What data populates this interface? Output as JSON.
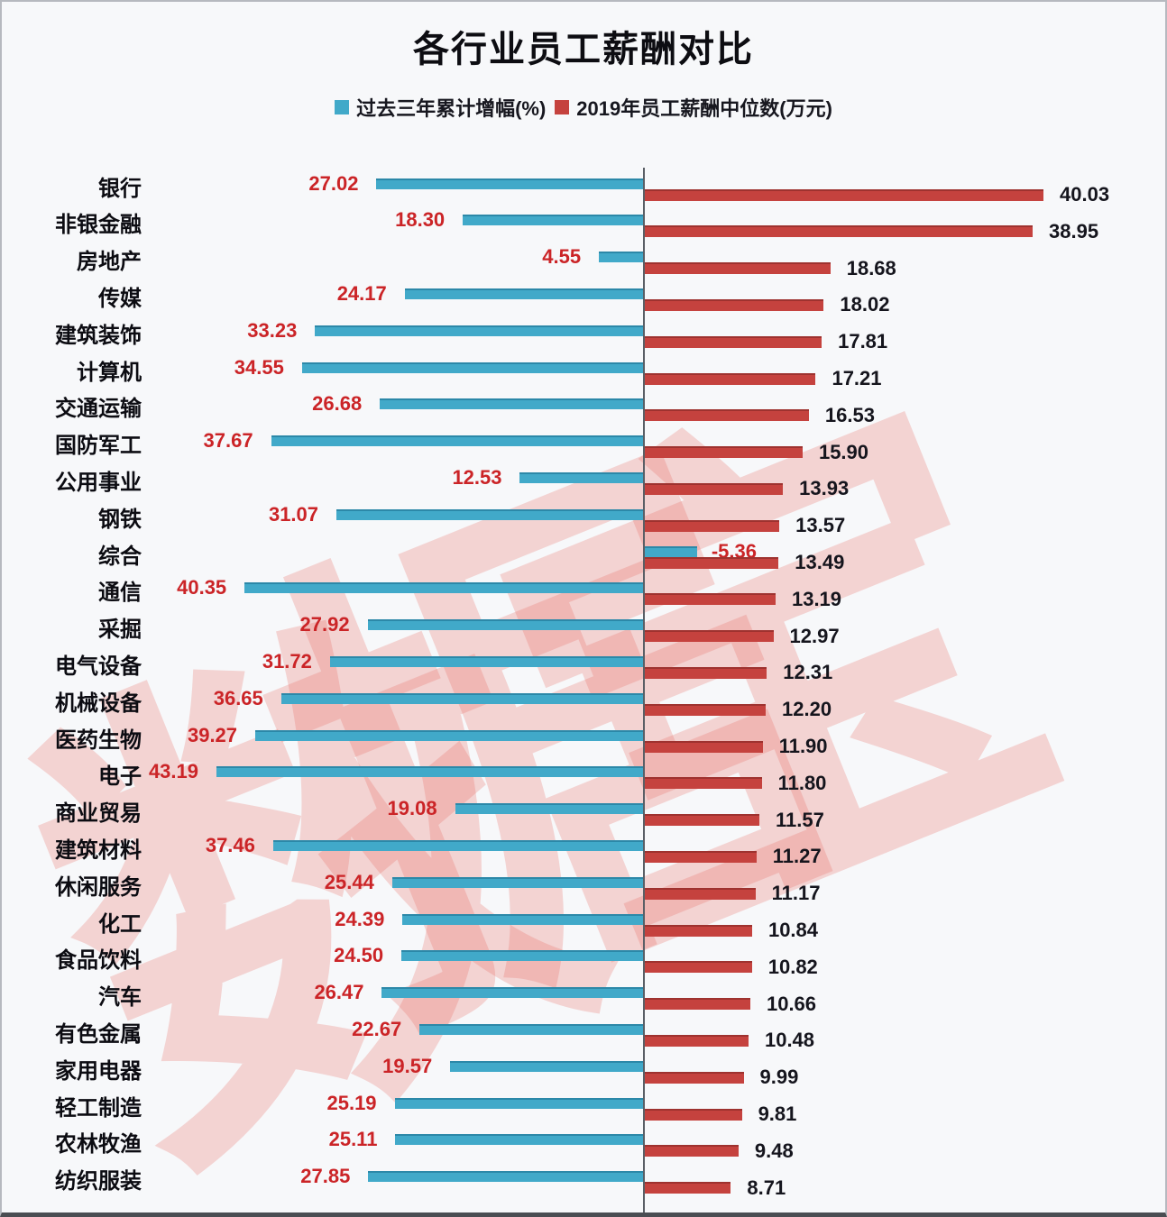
{
  "title": "各行业员工薪酬对比",
  "watermark": "数据宝",
  "colors": {
    "growth_bar": "#41a9c9",
    "median_bar": "#c5423e",
    "growth_value_text": "#cb2427",
    "median_value_text": "#15151d",
    "watermark_pink": "#e8675f"
  },
  "legend": {
    "items": [
      {
        "label": "过去三年累计增幅(%)",
        "color": "#41a9c9"
      },
      {
        "label": "2019年员工薪酬中位数(万元)",
        "color": "#c5423e"
      }
    ]
  },
  "chart_data": {
    "type": "bar",
    "orientation": "horizontal-bidirectional",
    "title": "各行业员工薪酬对比",
    "legend_position": "top-center",
    "axis": {
      "type": "shared-center-baseline",
      "growth_direction": "left",
      "median_direction": "right"
    },
    "categories": [
      "银行",
      "非银金融",
      "房地产",
      "传媒",
      "建筑装饰",
      "计算机",
      "交通运输",
      "国防军工",
      "公用事业",
      "钢铁",
      "综合",
      "通信",
      "采掘",
      "电气设备",
      "机械设备",
      "医药生物",
      "电子",
      "商业贸易",
      "建筑材料",
      "休闲服务",
      "化工",
      "食品饮料",
      "汽车",
      "有色金属",
      "家用电器",
      "轻工制造",
      "农林牧渔",
      "纺织服装"
    ],
    "series": [
      {
        "name": "过去三年累计增幅(%)",
        "direction": "left",
        "color": "#41a9c9",
        "values": [
          27.02,
          18.3,
          4.55,
          24.17,
          33.23,
          34.55,
          26.68,
          37.67,
          12.53,
          31.07,
          -5.36,
          40.35,
          27.92,
          31.72,
          36.65,
          39.27,
          43.19,
          19.08,
          37.46,
          25.44,
          24.39,
          24.5,
          26.47,
          22.67,
          19.57,
          25.19,
          25.11,
          27.85
        ]
      },
      {
        "name": "2019年员工薪酬中位数(万元)",
        "direction": "right",
        "color": "#c5423e",
        "values": [
          40.03,
          38.95,
          18.68,
          18.02,
          17.81,
          17.21,
          16.53,
          15.9,
          13.93,
          13.57,
          13.49,
          13.19,
          12.97,
          12.31,
          12.2,
          11.9,
          11.8,
          11.57,
          11.27,
          11.17,
          10.84,
          10.82,
          10.66,
          10.48,
          9.99,
          9.81,
          9.48,
          8.71
        ]
      }
    ]
  }
}
